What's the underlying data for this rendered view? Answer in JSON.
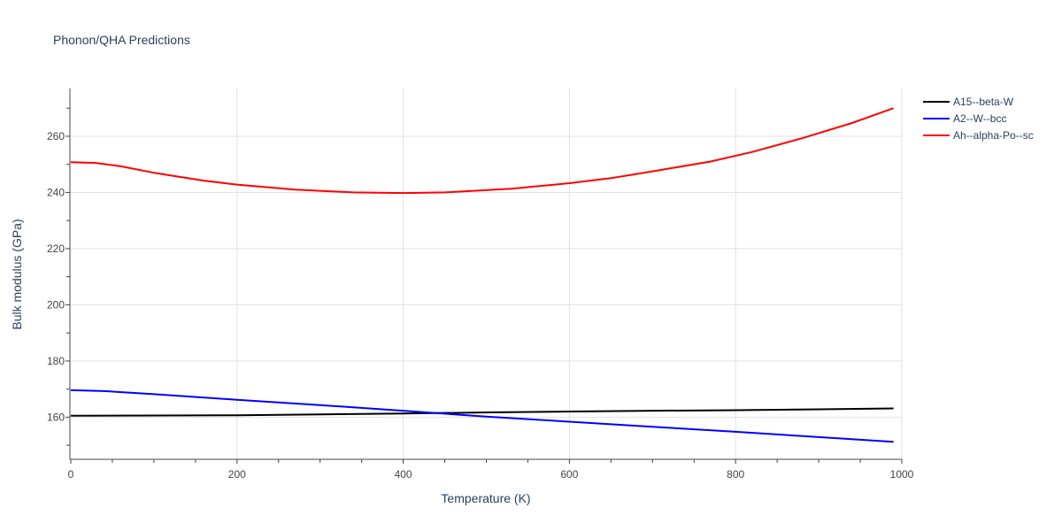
{
  "chart_data": {
    "type": "line",
    "title": "Phonon/QHA Predictions",
    "xlabel": "Temperature (K)",
    "ylabel": "Bulk modulus (GPa)",
    "xlim": [
      0,
      1000
    ],
    "ylim": [
      145,
      277
    ],
    "xticks": [
      0,
      200,
      400,
      600,
      800,
      1000
    ],
    "yticks": [
      160,
      180,
      200,
      220,
      240,
      260
    ],
    "grid": true,
    "legend_position": "top-right",
    "series": [
      {
        "name": "A15--beta-W",
        "color": "#000000",
        "x": [
          0,
          100,
          200,
          300,
          400,
          500,
          600,
          700,
          800,
          900,
          990
        ],
        "y": [
          160.5,
          160.6,
          160.7,
          161.0,
          161.3,
          161.7,
          162.0,
          162.3,
          162.5,
          162.8,
          163.1
        ]
      },
      {
        "name": "A2--W--bcc",
        "color": "#0000ff",
        "x": [
          0,
          40,
          100,
          200,
          300,
          400,
          500,
          600,
          700,
          800,
          900,
          990
        ],
        "y": [
          169.6,
          169.3,
          168.2,
          166.2,
          164.3,
          162.3,
          160.2,
          158.4,
          156.6,
          154.8,
          152.9,
          151.2
        ]
      },
      {
        "name": "Ah--alpha-Po--sc",
        "color": "#ff0000",
        "x": [
          0,
          30,
          60,
          100,
          160,
          200,
          270,
          340,
          400,
          450,
          530,
          600,
          650,
          700,
          770,
          820,
          880,
          940,
          990
        ],
        "y": [
          250.8,
          250.5,
          249.3,
          247.0,
          244.2,
          242.8,
          241.0,
          240.0,
          239.8,
          240.0,
          241.3,
          243.3,
          245.1,
          247.5,
          251.0,
          254.4,
          259.3,
          264.7,
          270.0
        ]
      }
    ]
  }
}
